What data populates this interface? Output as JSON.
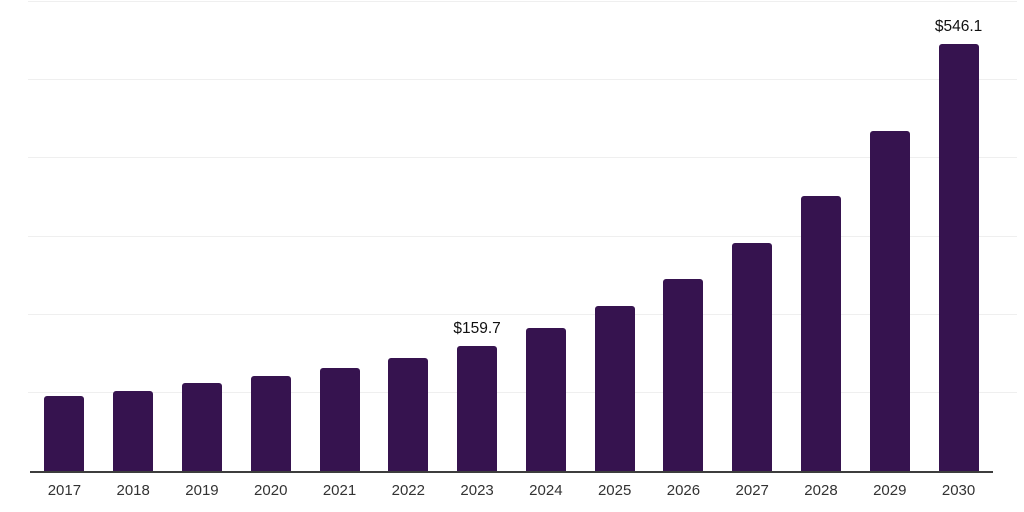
{
  "chart_data": {
    "type": "bar",
    "title": "",
    "xlabel": "",
    "ylabel": "",
    "categories": [
      "2017",
      "2018",
      "2019",
      "2020",
      "2021",
      "2022",
      "2023",
      "2024",
      "2025",
      "2026",
      "2027",
      "2028",
      "2029",
      "2030"
    ],
    "values": [
      95.5,
      103.0,
      113.0,
      122.0,
      131.5,
      144.5,
      159.7,
      183.0,
      211.0,
      245.5,
      292.0,
      352.0,
      435.0,
      546.1
    ],
    "point_labels": {
      "2023": "$159.7",
      "2030": "$546.1"
    },
    "ylim": [
      0,
      600
    ],
    "gridline_step": 100,
    "grid": "horizontal",
    "legend": "none",
    "y_axis_tick_labels_visible": false,
    "colors": {
      "bar": "#36134f",
      "gridline": "#efefef",
      "axis_line": "#3d3d3d",
      "value_label": "#111111",
      "tick_label": "#333333",
      "background": "#ffffff"
    }
  }
}
